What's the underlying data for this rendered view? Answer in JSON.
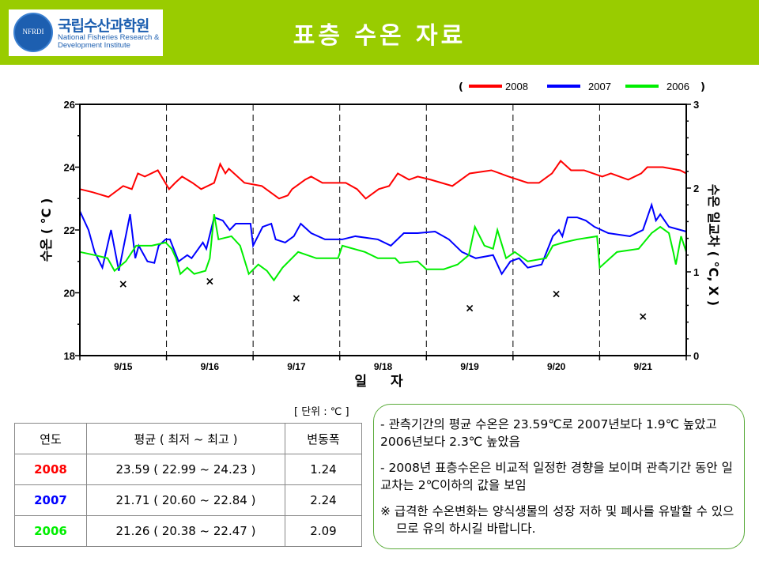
{
  "header": {
    "title": "표층 수온 자료",
    "logo_ko": "국립수산과학원",
    "logo_en_1": "National Fisheries Research &",
    "logo_en_2": "Development Institute",
    "logo_seal": "NFRDI"
  },
  "colors": {
    "header": "#99cc00",
    "2008": "#ff0000",
    "2007": "#0000ff",
    "2006": "#00ee00"
  },
  "chart_data": {
    "type": "line",
    "xlabel": "일 자",
    "ylabel": "수온 ( °C )",
    "ylabel_right": "수온 일교차 ( °C, X )",
    "ylim": [
      18,
      26
    ],
    "yticks": [
      "18",
      "20",
      "22",
      "24",
      "26"
    ],
    "ylim_right": [
      0,
      3
    ],
    "yticks_right": [
      "0",
      "1",
      "2",
      "3"
    ],
    "categories": [
      "9/15",
      "9/16",
      "9/17",
      "9/18",
      "9/19",
      "9/20",
      "9/21"
    ],
    "legend": {
      "open": "(",
      "close": ")",
      "placement": "top-right"
    },
    "series": [
      {
        "name": "2008",
        "color": "#ff0000",
        "points": [
          [
            0,
            23.3
          ],
          [
            0.15,
            23.2
          ],
          [
            0.33,
            23.05
          ],
          [
            0.5,
            23.4
          ],
          [
            0.6,
            23.3
          ],
          [
            0.67,
            23.8
          ],
          [
            0.75,
            23.7
          ],
          [
            0.9,
            23.9
          ],
          [
            1.03,
            23.3
          ],
          [
            1.1,
            23.5
          ],
          [
            1.18,
            23.7
          ],
          [
            1.3,
            23.5
          ],
          [
            1.4,
            23.3
          ],
          [
            1.55,
            23.5
          ],
          [
            1.62,
            24.1
          ],
          [
            1.68,
            23.8
          ],
          [
            1.72,
            23.95
          ],
          [
            1.9,
            23.5
          ],
          [
            2.1,
            23.4
          ],
          [
            2.2,
            23.2
          ],
          [
            2.3,
            23.0
          ],
          [
            2.4,
            23.1
          ],
          [
            2.45,
            23.3
          ],
          [
            2.6,
            23.6
          ],
          [
            2.67,
            23.7
          ],
          [
            2.8,
            23.5
          ],
          [
            3.07,
            23.5
          ],
          [
            3.2,
            23.3
          ],
          [
            3.3,
            23.0
          ],
          [
            3.45,
            23.3
          ],
          [
            3.57,
            23.4
          ],
          [
            3.67,
            23.8
          ],
          [
            3.8,
            23.6
          ],
          [
            3.9,
            23.7
          ],
          [
            4.05,
            23.6
          ],
          [
            4.3,
            23.4
          ],
          [
            4.5,
            23.8
          ],
          [
            4.75,
            23.9
          ],
          [
            4.95,
            23.7
          ],
          [
            5.17,
            23.5
          ],
          [
            5.3,
            23.5
          ],
          [
            5.45,
            23.8
          ],
          [
            5.55,
            24.2
          ],
          [
            5.67,
            23.9
          ],
          [
            5.82,
            23.9
          ],
          [
            6.03,
            23.7
          ],
          [
            6.13,
            23.8
          ],
          [
            6.33,
            23.6
          ],
          [
            6.48,
            23.8
          ],
          [
            6.55,
            24.0
          ],
          [
            6.73,
            24.0
          ],
          [
            6.93,
            23.9
          ],
          [
            7,
            23.8
          ]
        ]
      },
      {
        "name": "2007",
        "color": "#0000ff",
        "points": [
          [
            0,
            22.6
          ],
          [
            0.1,
            22.0
          ],
          [
            0.17,
            21.3
          ],
          [
            0.26,
            20.8
          ],
          [
            0.36,
            22.0
          ],
          [
            0.45,
            20.7
          ],
          [
            0.58,
            22.5
          ],
          [
            0.64,
            21.1
          ],
          [
            0.68,
            21.5
          ],
          [
            0.78,
            21.0
          ],
          [
            0.86,
            20.95
          ],
          [
            0.91,
            21.5
          ],
          [
            0.99,
            21.7
          ],
          [
            1.04,
            21.7
          ],
          [
            1.14,
            21.0
          ],
          [
            1.24,
            21.2
          ],
          [
            1.29,
            21.1
          ],
          [
            1.42,
            21.6
          ],
          [
            1.46,
            21.4
          ],
          [
            1.55,
            22.4
          ],
          [
            1.65,
            22.3
          ],
          [
            1.73,
            22.0
          ],
          [
            1.8,
            22.2
          ],
          [
            1.97,
            22.2
          ],
          [
            2.0,
            21.5
          ],
          [
            2.11,
            22.1
          ],
          [
            2.21,
            22.2
          ],
          [
            2.26,
            21.7
          ],
          [
            2.37,
            21.6
          ],
          [
            2.47,
            21.8
          ],
          [
            2.55,
            22.2
          ],
          [
            2.67,
            21.9
          ],
          [
            2.83,
            21.7
          ],
          [
            3.03,
            21.7
          ],
          [
            3.18,
            21.8
          ],
          [
            3.44,
            21.7
          ],
          [
            3.59,
            21.5
          ],
          [
            3.74,
            21.9
          ],
          [
            3.9,
            21.9
          ],
          [
            4.1,
            21.95
          ],
          [
            4.26,
            21.7
          ],
          [
            4.41,
            21.3
          ],
          [
            4.57,
            21.1
          ],
          [
            4.77,
            21.2
          ],
          [
            4.87,
            20.6
          ],
          [
            4.97,
            21.0
          ],
          [
            5.07,
            21.1
          ],
          [
            5.17,
            20.8
          ],
          [
            5.33,
            20.9
          ],
          [
            5.46,
            21.8
          ],
          [
            5.53,
            22.0
          ],
          [
            5.57,
            21.8
          ],
          [
            5.63,
            22.4
          ],
          [
            5.74,
            22.4
          ],
          [
            5.84,
            22.3
          ],
          [
            5.94,
            22.1
          ],
          [
            6.1,
            21.9
          ],
          [
            6.35,
            21.8
          ],
          [
            6.5,
            22.0
          ],
          [
            6.55,
            22.4
          ],
          [
            6.6,
            22.8
          ],
          [
            6.65,
            22.3
          ],
          [
            6.7,
            22.5
          ],
          [
            6.8,
            22.1
          ],
          [
            7,
            21.95
          ]
        ]
      },
      {
        "name": "2006",
        "color": "#00ee00",
        "points": [
          [
            0,
            21.3
          ],
          [
            0.17,
            21.2
          ],
          [
            0.32,
            21.1
          ],
          [
            0.4,
            20.7
          ],
          [
            0.53,
            21.0
          ],
          [
            0.65,
            21.5
          ],
          [
            0.83,
            21.5
          ],
          [
            0.99,
            21.6
          ],
          [
            1.06,
            21.4
          ],
          [
            1.11,
            21.1
          ],
          [
            1.16,
            20.6
          ],
          [
            1.24,
            20.8
          ],
          [
            1.32,
            20.6
          ],
          [
            1.45,
            20.7
          ],
          [
            1.5,
            21.1
          ],
          [
            1.55,
            22.5
          ],
          [
            1.6,
            21.7
          ],
          [
            1.75,
            21.8
          ],
          [
            1.85,
            21.5
          ],
          [
            1.95,
            20.6
          ],
          [
            2.06,
            20.9
          ],
          [
            2.16,
            20.7
          ],
          [
            2.24,
            20.4
          ],
          [
            2.34,
            20.8
          ],
          [
            2.52,
            21.3
          ],
          [
            2.73,
            21.1
          ],
          [
            2.98,
            21.1
          ],
          [
            3.03,
            21.5
          ],
          [
            3.29,
            21.3
          ],
          [
            3.44,
            21.1
          ],
          [
            3.64,
            21.1
          ],
          [
            3.69,
            20.95
          ],
          [
            3.9,
            21.0
          ],
          [
            4.0,
            20.75
          ],
          [
            4.2,
            20.75
          ],
          [
            4.36,
            20.9
          ],
          [
            4.49,
            21.2
          ],
          [
            4.56,
            22.1
          ],
          [
            4.67,
            21.5
          ],
          [
            4.77,
            21.4
          ],
          [
            4.82,
            22.0
          ],
          [
            4.92,
            21.1
          ],
          [
            5.02,
            21.3
          ],
          [
            5.17,
            21.0
          ],
          [
            5.38,
            21.1
          ],
          [
            5.46,
            21.5
          ],
          [
            5.58,
            21.6
          ],
          [
            5.74,
            21.7
          ],
          [
            5.97,
            21.8
          ],
          [
            6.0,
            20.8
          ],
          [
            6.2,
            21.3
          ],
          [
            6.45,
            21.4
          ],
          [
            6.6,
            21.9
          ],
          [
            6.7,
            22.1
          ],
          [
            6.8,
            21.9
          ],
          [
            6.85,
            21.3
          ],
          [
            6.88,
            20.9
          ],
          [
            6.94,
            21.8
          ],
          [
            7,
            21.3
          ]
        ]
      },
      {
        "name": "daily range (X)",
        "axis": "right",
        "marker": "x",
        "points": [
          [
            0.5,
            0.86
          ],
          [
            1.5,
            0.89
          ],
          [
            2.5,
            0.69
          ],
          [
            4.5,
            0.57
          ],
          [
            5.5,
            0.74
          ],
          [
            6.5,
            0.47
          ]
        ]
      }
    ]
  },
  "table": {
    "unit": "[ 단위 : ℃ ]",
    "headers": [
      "연도",
      "평균 ( 최저 ~ 최고 )",
      "변동폭"
    ],
    "rows": [
      {
        "year": "2008",
        "stats": "23.59 ( 22.99 ~ 24.23 )",
        "range": "1.24"
      },
      {
        "year": "2007",
        "stats": "21.71 ( 20.60 ~ 22.84 )",
        "range": "2.24"
      },
      {
        "year": "2006",
        "stats": "21.26 ( 20.38 ~ 22.47 )",
        "range": "2.09"
      }
    ]
  },
  "notes": [
    "- 관측기간의 평균 수온은 23.59℃로 2007년보다 1.9℃ 높았고 2006년보다 2.3℃ 높았음",
    "- 2008년 표층수온은 비교적 일정한 경향을 보이며 관측기간 동안 일교차는 2℃이하의 값을 보임",
    "※ 급격한 수온변화는 양식생물의 성장 저하 및 폐사를 유발할 수 있으므로 유의 하시길 바랍니다."
  ]
}
